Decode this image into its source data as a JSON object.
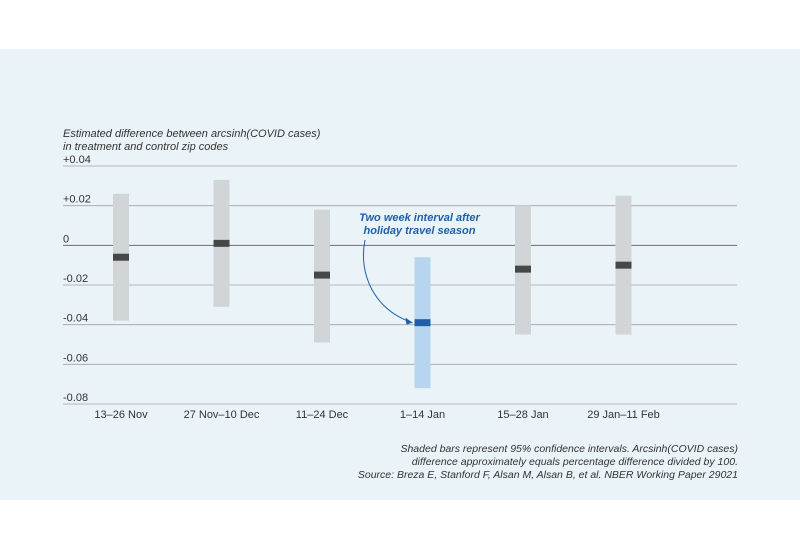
{
  "chart_data": {
    "type": "interval",
    "ylabel": [
      "Estimated difference between arcsinh(COVID cases)",
      "in treatment and control zip codes"
    ],
    "ylim": [
      -0.08,
      0.04
    ],
    "yticks": [
      {
        "value": 0.04,
        "label": "+0.04"
      },
      {
        "value": 0.02,
        "label": "+0.02"
      },
      {
        "value": 0,
        "label": "0"
      },
      {
        "value": -0.02,
        "label": "-0.02"
      },
      {
        "value": -0.04,
        "label": "-0.04"
      },
      {
        "value": -0.06,
        "label": "-0.06"
      },
      {
        "value": -0.08,
        "label": "-0.08"
      }
    ],
    "categories": [
      "13–26 Nov",
      "27 Nov–10 Dec",
      "11–24 Dec",
      "1–14 Jan",
      "15–28 Jan",
      "29 Jan–11 Feb"
    ],
    "estimates": [
      -0.006,
      0.001,
      -0.015,
      -0.039,
      -0.012,
      -0.01
    ],
    "ci_low": [
      -0.038,
      -0.031,
      -0.049,
      -0.072,
      -0.045,
      -0.045
    ],
    "ci_high": [
      0.026,
      0.033,
      0.018,
      -0.006,
      0.02,
      0.025
    ],
    "highlight_index": 3,
    "annotation": [
      "Two week interval after",
      "holiday travel season"
    ],
    "grid": true
  },
  "colors": {
    "ci_bar": "#d2d5d8",
    "estimate": "#474747",
    "highlight_ci": "#b7d5ee",
    "highlight_estimate": "#1f5fa8",
    "annotation": "#1f5fa8",
    "grid": "#a3a3a3",
    "zero_line": "#6c6c6c",
    "background": "#e9f3f8"
  },
  "footnote": [
    "Shaded bars represent 95% confidence intervals. Arcsinh(COVID cases)",
    "difference approximately equals percentage difference divided by 100.",
    "Source: Breza E, Stanford F, Alsan M, Alsan B, et al. NBER Working Paper 29021"
  ]
}
